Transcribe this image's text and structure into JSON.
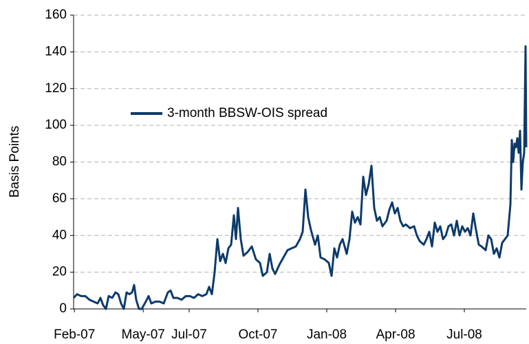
{
  "chart_data": {
    "type": "line",
    "y_label": "Basis Points",
    "ylim": [
      0,
      160
    ],
    "yticks": [
      0,
      20,
      40,
      60,
      80,
      100,
      120,
      140,
      160
    ],
    "grid": true,
    "xlim": [
      2007.08,
      2008.725
    ],
    "xticks": [
      {
        "value": 2007.083,
        "label": "Feb-07"
      },
      {
        "value": 2007.333,
        "label": "May-07"
      },
      {
        "value": 2007.5,
        "label": "Jul-07"
      },
      {
        "value": 2007.75,
        "label": "Oct-07"
      },
      {
        "value": 2008.0,
        "label": "Jan-08"
      },
      {
        "value": 2008.25,
        "label": "Apr-08"
      },
      {
        "value": 2008.5,
        "label": "Jul-08"
      }
    ],
    "legend": "upper left",
    "x": [
      2007.08,
      2007.0925,
      2007.1075,
      2007.1225,
      2007.1375,
      2007.1525,
      2007.1675,
      2007.1775,
      2007.1875,
      2007.1975,
      2007.2075,
      2007.22,
      2007.2325,
      2007.2425,
      2007.2525,
      2007.2625,
      2007.2725,
      2007.2825,
      2007.2925,
      2007.3,
      2007.3075,
      2007.3175,
      2007.3275,
      2007.3425,
      2007.3525,
      2007.3625,
      2007.3775,
      2007.3925,
      2007.4075,
      2007.4225,
      2007.4325,
      2007.4425,
      2007.4575,
      2007.4725,
      2007.4875,
      2007.5025,
      2007.5175,
      2007.5325,
      2007.5475,
      2007.5625,
      2007.5725,
      2007.5825,
      2007.5925,
      2007.6025,
      2007.6125,
      2007.6225,
      2007.6325,
      2007.6425,
      2007.6525,
      2007.6625,
      2007.67,
      2007.6775,
      2007.6875,
      2007.6975,
      2007.7125,
      2007.7275,
      2007.7425,
      2007.7575,
      2007.7675,
      2007.7825,
      2007.7925,
      2007.8025,
      2007.8125,
      2007.8275,
      2007.8425,
      2007.8575,
      2007.8725,
      2007.8875,
      2007.9025,
      2007.9125,
      2007.9225,
      2007.9325,
      2007.9425,
      2007.9575,
      2007.9675,
      2007.9775,
      2007.9925,
      2008.0075,
      2008.0175,
      2008.0275,
      2008.0375,
      2008.0475,
      2008.0575,
      2008.0725,
      2008.0825,
      2008.0925,
      2008.1025,
      2008.1125,
      2008.1225,
      2008.1325,
      2008.1425,
      2008.1525,
      2008.1625,
      2008.1725,
      2008.1825,
      2008.1925,
      2008.2025,
      2008.2175,
      2008.2275,
      2008.2375,
      2008.2475,
      2008.2575,
      2008.2675,
      2008.2775,
      2008.2875,
      2008.3025,
      2008.3175,
      2008.3275,
      2008.3375,
      2008.3525,
      2008.3625,
      2008.3725,
      2008.3825,
      2008.3925,
      2008.4025,
      2008.4125,
      2008.4225,
      2008.4325,
      2008.4425,
      2008.4525,
      2008.4625,
      2008.4725,
      2008.4825,
      2008.4925,
      2008.5025,
      2008.5125,
      2008.5225,
      2008.5325,
      2008.5425,
      2008.5525,
      2008.5625,
      2008.5775,
      2008.5875,
      2008.5975,
      2008.6075,
      2008.6175,
      2008.6275,
      2008.6375,
      2008.6475,
      2008.6575,
      2008.6675,
      2008.6725,
      2008.6775,
      2008.6825,
      2008.6875,
      2008.6925,
      2008.6975,
      2008.7025,
      2008.7075,
      2008.7125,
      2008.7175,
      2008.7225,
      2008.725
    ],
    "series": [
      {
        "name": "3-month BBSW-OIS spread",
        "color": "#0d3a6b",
        "values": [
          6,
          8,
          7,
          7,
          5,
          4,
          3,
          6,
          2,
          0,
          7,
          6,
          9,
          8,
          3,
          0,
          9,
          8,
          9,
          13,
          5,
          0,
          0,
          4,
          7,
          3,
          4,
          4,
          3,
          9,
          10,
          6,
          6,
          5,
          7,
          7,
          6,
          8,
          7,
          8,
          12,
          8,
          20,
          38,
          26,
          30,
          25,
          33,
          35,
          51,
          38,
          55,
          38,
          29,
          31,
          34,
          27,
          25,
          18,
          20,
          30,
          22,
          19,
          24,
          28,
          32,
          33,
          34,
          38,
          42,
          65,
          50,
          43,
          35,
          40,
          28,
          27,
          25,
          18,
          33,
          28,
          35,
          38,
          30,
          38,
          53,
          47,
          50,
          46,
          72,
          62,
          68,
          78,
          55,
          48,
          50,
          45,
          48,
          54,
          58,
          52,
          55,
          48,
          45,
          46,
          44,
          45,
          40,
          37,
          35,
          38,
          42,
          34,
          47,
          42,
          45,
          38,
          40,
          45,
          46,
          40,
          48,
          40,
          45,
          42,
          44,
          40,
          52,
          43,
          35,
          34,
          32,
          40,
          38,
          30,
          33,
          28,
          36,
          38,
          40,
          57,
          92,
          80,
          90,
          88,
          93,
          85,
          97,
          65,
          80,
          85,
          143,
          88
        ]
      }
    ]
  }
}
